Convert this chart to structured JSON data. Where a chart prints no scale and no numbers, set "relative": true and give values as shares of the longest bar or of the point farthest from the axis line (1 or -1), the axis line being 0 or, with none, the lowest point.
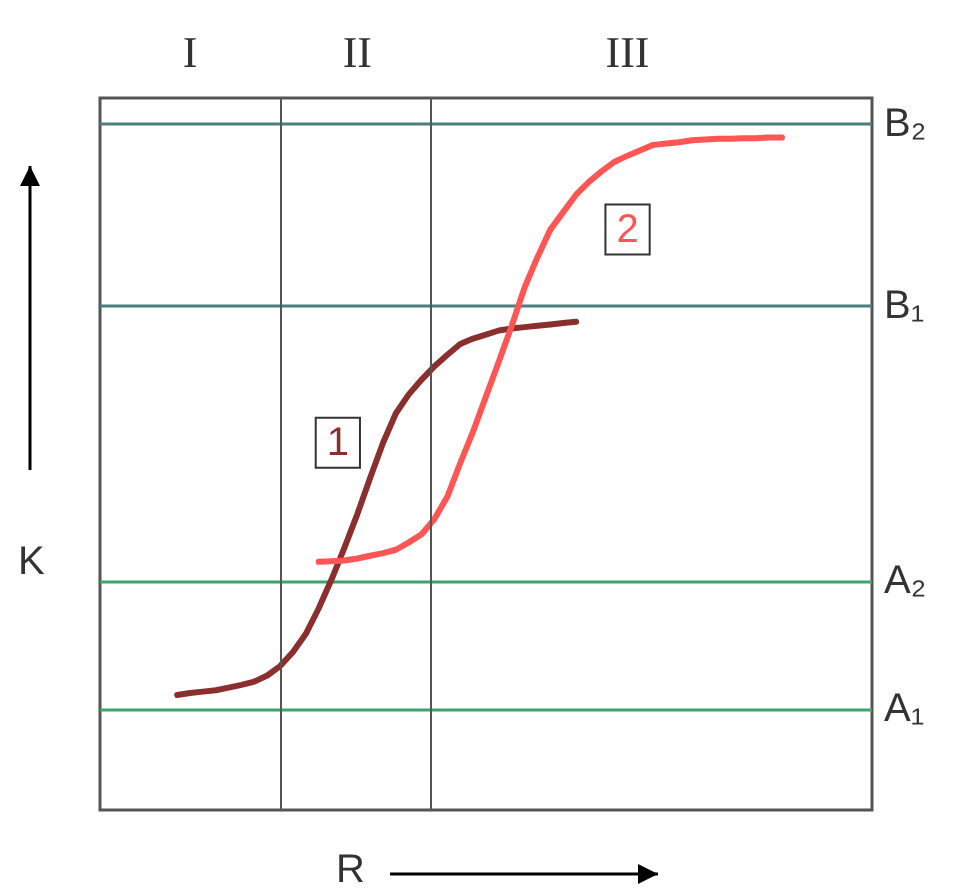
{
  "chart_data": {
    "type": "line",
    "relative": true,
    "xlabel": "R",
    "ylabel": "K",
    "tick_labels": "x",
    "grid": false,
    "legend": false,
    "marker": "none",
    "line_style": "solid",
    "categories": [
      null,
      null,
      null,
      null,
      null,
      null,
      null,
      "I",
      null,
      null,
      null,
      null,
      null,
      null,
      null,
      null,
      null,
      null,
      null,
      null,
      "II",
      null,
      null,
      null,
      null,
      null,
      null,
      null,
      null,
      null,
      null,
      null,
      null,
      null,
      null,
      null,
      null,
      null,
      null,
      null,
      null,
      "III",
      null,
      null,
      null,
      null,
      null,
      null,
      null,
      null,
      null,
      null,
      null,
      null,
      null,
      null,
      null,
      null,
      null,
      null,
      null
    ],
    "series": [
      {
        "name": "1",
        "color": "#8b2e2e",
        "values": [
          null,
          null,
          null,
          null,
          null,
          null,
          0.171,
          0.174,
          0.176,
          0.178,
          0.182,
          0.186,
          0.191,
          0.2,
          0.214,
          0.235,
          0.262,
          0.3,
          0.343,
          0.39,
          0.44,
          0.494,
          0.546,
          0.59,
          0.618,
          0.64,
          0.66,
          0.677,
          0.693,
          0.701,
          0.707,
          0.713,
          0.716,
          0.718,
          0.72,
          0.722,
          0.724,
          0.726,
          null,
          null,
          null,
          null,
          null,
          null,
          null,
          null,
          null,
          null,
          null,
          null,
          null,
          null,
          null,
          null,
          null,
          null,
          null,
          null,
          null,
          null,
          null
        ]
      },
      {
        "name": "2",
        "color": "#ff5555",
        "values": [
          null,
          null,
          null,
          null,
          null,
          null,
          null,
          null,
          null,
          null,
          null,
          null,
          null,
          null,
          null,
          null,
          null,
          0.369,
          0.37,
          0.371,
          0.374,
          0.378,
          0.382,
          0.387,
          0.398,
          0.41,
          0.433,
          0.466,
          0.516,
          0.563,
          0.615,
          0.667,
          0.72,
          0.777,
          0.822,
          0.863,
          0.889,
          0.915,
          0.934,
          0.95,
          0.964,
          0.973,
          0.981,
          0.989,
          0.991,
          0.993,
          0.996,
          0.997,
          0.998,
          0.998,
          0.999,
          0.999,
          1,
          1,
          null,
          null,
          null,
          null,
          null,
          null,
          null
        ]
      }
    ],
    "ref_lines": [
      {
        "axis": "y",
        "value": 1.018,
        "label": "B₂",
        "color": "#4a7f7f"
      },
      {
        "axis": "y",
        "value": 0.747,
        "label": "B₁",
        "color": "#4a7f7f"
      },
      {
        "axis": "y",
        "value": 0.342,
        "label": "A₂",
        "color": "#3aa66a"
      },
      {
        "axis": "y",
        "value": 0.146,
        "label": "A₁",
        "color": "#3aa66a"
      }
    ]
  }
}
